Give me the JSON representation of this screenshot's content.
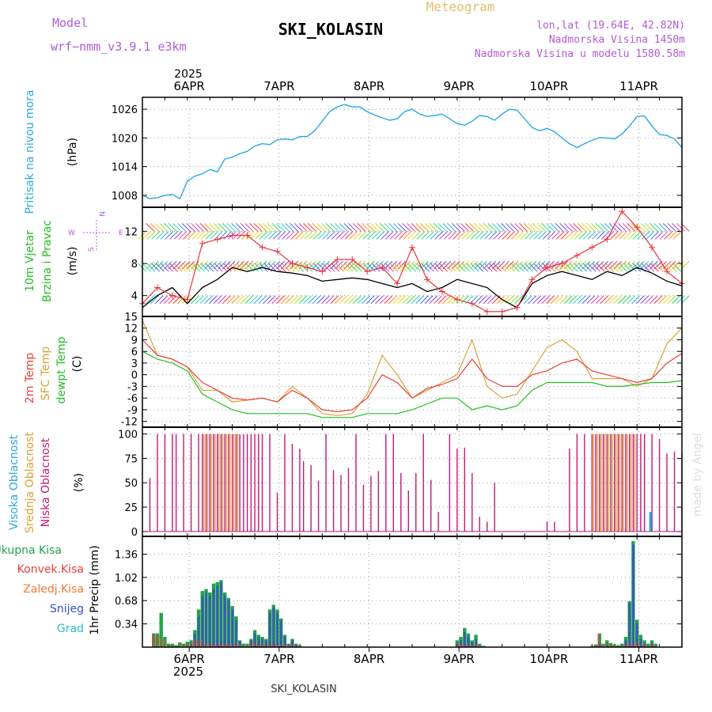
{
  "header": {
    "model_label": "Model",
    "model_name": "wrf−nmm_v3.9.1  e3km",
    "meteogram_label": "Meteogram",
    "station_title": "SKI_KOLASIN",
    "coords": "lon,lat (19.64E, 42.82N)",
    "altitude": "Nadmorska Visina 1450m",
    "model_altitude": "Nadmorska Visina u modelu 1580.58m",
    "footer_station": "SKI_KOLASIN",
    "watermark": "made by Angel"
  },
  "colors": {
    "pressure": "#29a8e0",
    "wind_speed": "#000000",
    "gust": "#e8353a",
    "temp2m": "#e8403a",
    "sfc_temp": "#d9a13a",
    "dewpt": "#22c022",
    "low_cloud": "#c2187a",
    "mid_cloud": "#e0a030",
    "high_cloud": "#29a8e0",
    "total_rain": "#22a34a",
    "conv_rain": "#e8403a",
    "snow": "#3a4fc8",
    "label_purple": "#b25bd6",
    "label_gold": "#e3be6a"
  },
  "time_axis": {
    "year": "2025",
    "day_labels": [
      "6APR",
      "7APR",
      "8APR",
      "9APR",
      "10APR",
      "11APR"
    ]
  },
  "chart_data": [
    {
      "type": "line",
      "panel": "pressure",
      "ylabel_name": "Pritisak na nivou mora",
      "ylabel_unit": "(hPa)",
      "yticks": [
        1008,
        1014,
        1020,
        1026
      ],
      "ylim": [
        1005.5,
        1028.5
      ],
      "x_hours": [
        0,
        2,
        4,
        6,
        8,
        10,
        12,
        14,
        16,
        18,
        20,
        22,
        24,
        26,
        28,
        30,
        32,
        34,
        36,
        38,
        40,
        42,
        44,
        46,
        48,
        50,
        52,
        54,
        56,
        58,
        60,
        62,
        64,
        66,
        68,
        70,
        72,
        74,
        76,
        78,
        80,
        82,
        84,
        86,
        88,
        90,
        92,
        94,
        96,
        98,
        100,
        102,
        104,
        106,
        108,
        110,
        112,
        114,
        116,
        118,
        120,
        122,
        124,
        126,
        128,
        130,
        132,
        134,
        136,
        138,
        140,
        142,
        144
      ],
      "series": [
        {
          "name": "Pritisak na nivou mora",
          "values": [
            1008,
            1007.3,
            1007.5,
            1008,
            1008.2,
            1007.3,
            1011,
            1012,
            1012.5,
            1013.4,
            1012.9,
            1015.6,
            1016,
            1016.7,
            1017.2,
            1018.3,
            1018.8,
            1018.6,
            1019.6,
            1019.8,
            1019.6,
            1020.3,
            1020.3,
            1021.5,
            1023.5,
            1025.5,
            1026.5,
            1027,
            1026.5,
            1026.5,
            1025.5,
            1024.8,
            1024.2,
            1023.7,
            1024,
            1025.5,
            1026,
            1025,
            1024.5,
            1024.7,
            1025,
            1024,
            1023,
            1022.7,
            1023.5,
            1024.7,
            1024.5,
            1023.7,
            1025,
            1026,
            1025.8,
            1024,
            1022.2,
            1021.5,
            1022,
            1021.3,
            1020,
            1018.8,
            1018,
            1018.8,
            1019.5,
            1020.1,
            1020,
            1019.8,
            1020.8,
            1022.5,
            1024.5,
            1024.6,
            1022.5,
            1020.7,
            1020.5,
            1019.8,
            1018
          ]
        }
      ]
    },
    {
      "type": "line",
      "panel": "wind",
      "ylabel_name_1": "10m Vjetar",
      "ylabel_name_2": "Brzina i Pravac",
      "ylabel_unit": "(m/s)",
      "compass_n": "N",
      "compass_w": "W",
      "compass_e": "E",
      "compass_s": "S",
      "yticks": [
        4,
        8,
        12
      ],
      "ylim": [
        1.4,
        15
      ],
      "x_hours": [
        0,
        4,
        8,
        12,
        16,
        20,
        24,
        28,
        32,
        36,
        40,
        44,
        48,
        52,
        56,
        60,
        64,
        68,
        72,
        76,
        80,
        84,
        88,
        92,
        96,
        100,
        104,
        108,
        112,
        116,
        120,
        124,
        128,
        132,
        136,
        140,
        144
      ],
      "series": [
        {
          "name": "10m wind speed",
          "values": [
            2.5,
            4,
            5,
            3,
            5,
            6,
            7.5,
            7,
            7.5,
            7,
            6.8,
            6.5,
            5.8,
            6,
            6.2,
            6,
            5.5,
            5,
            5.5,
            4.5,
            5,
            6,
            5.5,
            5,
            3.5,
            2.5,
            5.5,
            6.5,
            7,
            6.5,
            6,
            7,
            6.5,
            7.5,
            6.8,
            5.8,
            5.2
          ]
        },
        {
          "name": "10m wind gust",
          "values": [
            3,
            5,
            4,
            3.5,
            10.5,
            11,
            11.5,
            11.5,
            10,
            9.5,
            8,
            7.5,
            7,
            8.5,
            8.5,
            7,
            7.5,
            5.5,
            10,
            6,
            4.5,
            3.5,
            3,
            2,
            2,
            2.5,
            6,
            7.5,
            8,
            9,
            10,
            11,
            14.5,
            12.5,
            10,
            7,
            5.5
          ]
        }
      ]
    },
    {
      "type": "line",
      "panel": "temperature",
      "ylabel_name_1": "2m Temp",
      "ylabel_name_2": "SFC Temp",
      "ylabel_name_3": "dewpt Temp",
      "ylabel_unit": "(C)",
      "yticks": [
        -12,
        -9,
        -6,
        -3,
        0,
        3,
        6,
        9,
        12,
        15
      ],
      "ylim": [
        -13.5,
        15
      ],
      "x_hours": [
        0,
        4,
        8,
        12,
        16,
        20,
        24,
        28,
        32,
        36,
        40,
        44,
        48,
        52,
        56,
        60,
        64,
        68,
        72,
        76,
        80,
        84,
        88,
        92,
        96,
        100,
        104,
        108,
        112,
        116,
        120,
        124,
        128,
        132,
        136,
        140,
        144
      ],
      "series": [
        {
          "name": "2m Temp",
          "values": [
            9,
            5,
            4,
            2,
            -2,
            -4,
            -6,
            -6.5,
            -6,
            -7,
            -4,
            -6,
            -9,
            -9.5,
            -9,
            -6,
            0,
            -2,
            -6,
            -3.5,
            -2.5,
            -1,
            4,
            -1,
            -3,
            -3,
            0,
            1,
            3,
            4,
            1,
            0,
            -1,
            -2,
            -1,
            3,
            5.5
          ]
        },
        {
          "name": "SFC Temp",
          "values": [
            14,
            5,
            4,
            2,
            -4,
            -4,
            -7,
            -6.5,
            -6,
            -7,
            -3,
            -6,
            -10,
            -10.5,
            -10,
            -5,
            5,
            0,
            -6,
            -4,
            -2,
            0,
            9,
            -3,
            -6,
            -5,
            1,
            7,
            9,
            6,
            -1,
            -1,
            -1,
            -3,
            -1,
            8,
            12
          ]
        },
        {
          "name": "dewpt Temp",
          "values": [
            6,
            4,
            3,
            1,
            -5,
            -7,
            -9,
            -10,
            -10,
            -10,
            -10,
            -10,
            -11,
            -11,
            -11,
            -10,
            -10,
            -10,
            -9,
            -7.5,
            -6,
            -6,
            -9,
            -8,
            -9,
            -8,
            -4,
            -2,
            -2,
            -2,
            -2,
            -3,
            -3,
            -2.5,
            -2,
            -2,
            -1.5
          ]
        }
      ]
    },
    {
      "type": "bar",
      "panel": "cloud",
      "ylabel_name_1": "Visoka Oblacnost",
      "ylabel_name_2": "Srednja Oblacnost",
      "ylabel_name_3": "Niska Oblacnost",
      "ylabel_unit": "(%)",
      "yticks": [
        0,
        25,
        50,
        75,
        100
      ],
      "ylim": [
        -5,
        107
      ],
      "x_hours": [
        2,
        4,
        6,
        8,
        9,
        11,
        13,
        15,
        16,
        17,
        18,
        19,
        20,
        21,
        22,
        23,
        24,
        25,
        26,
        27,
        28,
        29,
        30,
        31,
        32,
        34,
        36,
        38,
        40,
        42,
        43,
        45,
        47,
        49,
        51,
        53,
        55,
        57,
        59,
        61,
        63,
        65,
        67,
        69,
        71,
        73,
        75,
        77,
        79,
        82,
        84,
        86,
        88,
        90,
        92,
        94,
        96,
        98,
        100,
        102,
        104,
        106,
        108,
        110,
        114,
        116,
        118,
        120,
        121,
        122,
        123,
        124,
        125,
        126,
        127,
        128,
        129,
        130,
        131,
        132,
        133,
        134,
        136,
        138,
        140,
        142,
        144
      ],
      "series": [
        {
          "name": "Niska Oblacnost",
          "values": [
            55,
            100,
            100,
            100,
            100,
            100,
            100,
            100,
            100,
            100,
            100,
            100,
            100,
            100,
            100,
            100,
            100,
            100,
            100,
            100,
            100,
            100,
            100,
            100,
            100,
            100,
            40,
            100,
            90,
            85,
            72,
            68,
            52,
            100,
            63,
            58,
            65,
            100,
            48,
            57,
            62,
            100,
            100,
            60,
            42,
            60,
            100,
            53,
            20,
            100,
            85,
            86,
            60,
            15,
            10,
            50,
            0,
            0,
            0,
            0,
            0,
            0,
            10,
            10,
            85,
            100,
            100,
            100,
            100,
            100,
            100,
            100,
            100,
            100,
            100,
            100,
            100,
            100,
            100,
            100,
            100,
            100,
            100,
            95,
            80,
            82,
            80
          ]
        },
        {
          "name": "Srednja Oblacnost",
          "values": [
            0,
            0,
            0,
            0,
            0,
            0,
            0,
            0,
            100,
            100,
            100,
            100,
            100,
            100,
            100,
            100,
            100,
            100,
            0,
            0,
            0,
            0,
            0,
            0,
            0,
            0,
            0,
            0,
            0,
            0,
            0,
            0,
            0,
            0,
            0,
            0,
            0,
            0,
            0,
            0,
            0,
            0,
            0,
            0,
            0,
            0,
            0,
            0,
            0,
            0,
            0,
            0,
            0,
            0,
            0,
            0,
            0,
            0,
            0,
            0,
            0,
            0,
            0,
            0,
            0,
            0,
            0,
            100,
            100,
            100,
            100,
            100,
            100,
            100,
            100,
            100,
            100,
            100,
            100,
            0,
            0,
            0,
            0,
            0,
            0,
            0,
            0
          ]
        },
        {
          "name": "Visoka Oblacnost",
          "values": [
            0,
            0,
            0,
            0,
            0,
            0,
            0,
            0,
            0,
            0,
            0,
            0,
            0,
            0,
            0,
            0,
            0,
            0,
            0,
            0,
            0,
            0,
            0,
            0,
            0,
            0,
            0,
            0,
            0,
            0,
            0,
            0,
            0,
            0,
            0,
            0,
            0,
            0,
            0,
            0,
            0,
            0,
            0,
            0,
            0,
            0,
            0,
            0,
            0,
            0,
            0,
            0,
            0,
            0,
            0,
            0,
            0,
            0,
            0,
            0,
            0,
            0,
            0,
            0,
            0,
            0,
            0,
            0,
            0,
            0,
            0,
            0,
            0,
            0,
            0,
            0,
            0,
            0,
            0,
            0,
            0,
            0,
            20,
            0,
            0,
            0,
            0
          ]
        }
      ]
    },
    {
      "type": "bar",
      "panel": "precip",
      "legend_total": "Ukupna Kisa",
      "legend_conv": "Konvek.Kisa",
      "legend_freezing": "Zaledj.Kisa",
      "legend_snow": "Snijeg",
      "legend_hail": "Grad",
      "ylabel_unit": "1hr Precip (mm)",
      "yticks": [
        0.34,
        0.68,
        1.02,
        1.36
      ],
      "ylim": [
        0,
        1.62
      ],
      "x_hours": [
        3,
        4,
        5,
        6,
        7,
        8,
        9,
        10,
        11,
        12,
        13,
        14,
        15,
        16,
        17,
        18,
        19,
        20,
        21,
        22,
        23,
        24,
        25,
        26,
        27,
        28,
        29,
        30,
        31,
        32,
        33,
        34,
        35,
        36,
        37,
        38,
        39,
        40,
        41,
        42,
        84,
        85,
        86,
        87,
        88,
        89,
        90,
        91,
        120,
        121,
        122,
        123,
        124,
        125,
        126,
        127,
        128,
        129,
        130,
        131,
        132,
        133,
        134,
        135,
        136,
        137
      ],
      "series": [
        {
          "name": "Ukupna Kisa",
          "values": [
            0.2,
            0.2,
            0.5,
            0.15,
            0.05,
            0.05,
            0.03,
            0.07,
            0.05,
            0.08,
            0.1,
            0.25,
            0.55,
            0.82,
            0.85,
            0.8,
            0.93,
            0.95,
            0.98,
            0.8,
            0.72,
            0.6,
            0.45,
            0.1,
            0.05,
            0.05,
            0.12,
            0.25,
            0.18,
            0.15,
            0.12,
            0.55,
            0.62,
            0.55,
            0.42,
            0.18,
            0.05,
            0.12,
            0.05,
            0.03,
            0.1,
            0.15,
            0.28,
            0.2,
            0.1,
            0.18,
            0.05,
            0.02,
            0.02,
            0.04,
            0.2,
            0.05,
            0.1,
            0.06,
            0.04,
            0.03,
            0.05,
            0.15,
            0.67,
            1.55,
            0.4,
            0.18,
            0.1,
            0.05,
            0.1,
            0.05
          ]
        },
        {
          "name": "Konvek.Kisa",
          "values": [
            0.2,
            0.18,
            0.15,
            0.1,
            0.03,
            0.03,
            0.02,
            0.04,
            0.03,
            0.05,
            0.05,
            0.1,
            0.1,
            0.1,
            0.05,
            0.05,
            0.05,
            0.05,
            0.05,
            0.05,
            0.05,
            0.05,
            0.05,
            0.05,
            0.03,
            0.03,
            0.05,
            0.08,
            0.05,
            0.05,
            0.03,
            0.05,
            0.05,
            0.05,
            0.03,
            0.05,
            0.03,
            0.05,
            0.03,
            0.02,
            0.03,
            0.05,
            0.05,
            0.05,
            0.03,
            0.05,
            0.03,
            0.01,
            0.01,
            0.03,
            0.2,
            0.04,
            0.07,
            0.05,
            0.03,
            0.02,
            0.03,
            0.05,
            0.05,
            0.05,
            0.08,
            0.05,
            0.05,
            0.03,
            0.05,
            0.03
          ]
        },
        {
          "name": "Snijeg",
          "values": [
            0,
            0,
            0,
            0,
            0,
            0,
            0,
            0,
            0,
            0,
            0.05,
            0.2,
            0.45,
            0.75,
            0.8,
            0.75,
            0.85,
            0.9,
            0.95,
            0.75,
            0.68,
            0.55,
            0.4,
            0.08,
            0,
            0,
            0.1,
            0.2,
            0.15,
            0.12,
            0.1,
            0.5,
            0.58,
            0.5,
            0.38,
            0.15,
            0.03,
            0.1,
            0.03,
            0,
            0.05,
            0.1,
            0.22,
            0.15,
            0.07,
            0.12,
            0,
            0,
            0,
            0,
            0.05,
            0,
            0.03,
            0,
            0,
            0,
            0.02,
            0.1,
            0.65,
            1.5,
            0.35,
            0.12,
            0.05,
            0,
            0.05,
            0
          ]
        }
      ]
    }
  ]
}
